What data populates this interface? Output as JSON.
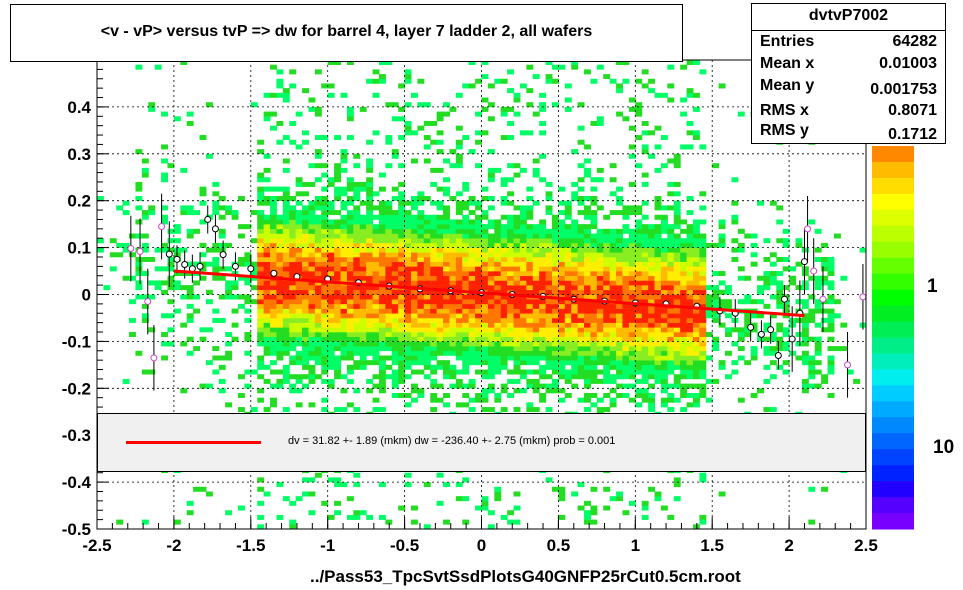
{
  "title": "<v - vP>       versus  tvP =>  dw for barrel 4, layer 7 ladder 2, all wafers",
  "stats": {
    "name": "dvtvP7002",
    "rows": [
      {
        "label": "Entries",
        "value": "64282"
      },
      {
        "label": "Mean x",
        "value": "0.01003"
      },
      {
        "label": "Mean y",
        "value": "0.001753"
      },
      {
        "label": "RMS x",
        "value": "0.8071"
      },
      {
        "label": "RMS y",
        "value": "0.1712"
      }
    ]
  },
  "legend": {
    "text": "dv =   31.82 +-  1.89 (mkm) dw = -236.40 +-  2.75 (mkm) prob = 0.001"
  },
  "filename": "../Pass53_TpcSvtSsdPlotsG40GNFP25rCut0.5cm.root",
  "colors": {
    "fit_line": "#ff0000",
    "profile_marker": "#cc44cc"
  },
  "chart_data": {
    "type": "heatmap",
    "title": "<v - vP>       versus  tvP =>  dw for barrel 4, layer 7 ladder 2, all wafers",
    "xlim": [
      -2.5,
      2.5
    ],
    "ylim": [
      -0.5,
      0.5
    ],
    "x_ticks": [
      "-2.5",
      "-2",
      "-1.5",
      "-1",
      "-0.5",
      "0",
      "0.5",
      "1",
      "1.5",
      "2",
      "2.5"
    ],
    "y_ticks": [
      "-0.5",
      "-0.4",
      "-0.3",
      "-0.2",
      "-0.1",
      "0",
      "0.1",
      "0.2",
      "0.3",
      "0.4"
    ],
    "colorbar_ticks": [
      "1",
      "10"
    ],
    "colorbar_scale": "log",
    "grid": true,
    "fit": {
      "x0": -2.0,
      "y0": 0.05,
      "x1": 2.1,
      "y1": -0.045
    },
    "profile": [
      {
        "x": -2.28,
        "y": 0.098
      },
      {
        "x": -2.22,
        "y": 0.092
      },
      {
        "x": -2.17,
        "y": -0.015
      },
      {
        "x": -2.13,
        "y": -0.135
      },
      {
        "x": -2.08,
        "y": 0.145
      },
      {
        "x": -2.03,
        "y": 0.086
      },
      {
        "x": -1.98,
        "y": 0.075
      },
      {
        "x": -1.93,
        "y": 0.064
      },
      {
        "x": -1.88,
        "y": 0.055
      },
      {
        "x": -1.83,
        "y": 0.06
      },
      {
        "x": -1.78,
        "y": 0.16
      },
      {
        "x": -1.73,
        "y": 0.14
      },
      {
        "x": -1.68,
        "y": 0.085
      },
      {
        "x": -1.6,
        "y": 0.06
      },
      {
        "x": -1.5,
        "y": 0.055
      },
      {
        "x": -1.35,
        "y": 0.045
      },
      {
        "x": -1.2,
        "y": 0.038
      },
      {
        "x": -1.0,
        "y": 0.033
      },
      {
        "x": -0.8,
        "y": 0.025
      },
      {
        "x": -0.6,
        "y": 0.018
      },
      {
        "x": -0.4,
        "y": 0.012
      },
      {
        "x": -0.2,
        "y": 0.008
      },
      {
        "x": 0.0,
        "y": 0.004
      },
      {
        "x": 0.2,
        "y": 0.0
      },
      {
        "x": 0.4,
        "y": -0.004
      },
      {
        "x": 0.6,
        "y": -0.01
      },
      {
        "x": 0.8,
        "y": -0.014
      },
      {
        "x": 1.0,
        "y": -0.018
      },
      {
        "x": 1.2,
        "y": -0.02
      },
      {
        "x": 1.4,
        "y": -0.025
      },
      {
        "x": 1.55,
        "y": -0.035
      },
      {
        "x": 1.65,
        "y": -0.04
      },
      {
        "x": 1.75,
        "y": -0.07
      },
      {
        "x": 1.82,
        "y": -0.085
      },
      {
        "x": 1.88,
        "y": -0.075
      },
      {
        "x": 1.93,
        "y": -0.13
      },
      {
        "x": 1.97,
        "y": -0.01
      },
      {
        "x": 2.02,
        "y": -0.095
      },
      {
        "x": 2.07,
        "y": -0.04
      },
      {
        "x": 2.1,
        "y": 0.07
      },
      {
        "x": 2.12,
        "y": 0.14
      },
      {
        "x": 2.16,
        "y": 0.05
      },
      {
        "x": 2.22,
        "y": -0.01
      },
      {
        "x": 2.38,
        "y": -0.15
      },
      {
        "x": 2.48,
        "y": -0.005
      }
    ]
  }
}
